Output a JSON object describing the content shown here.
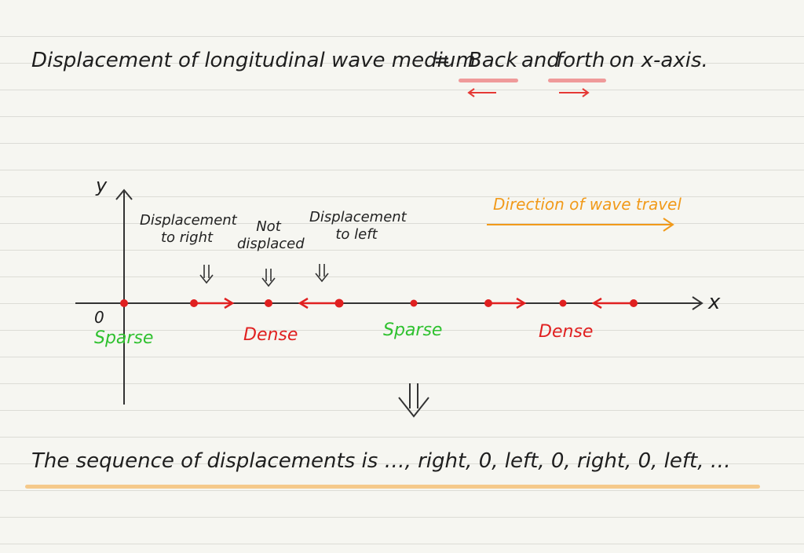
{
  "heading": {
    "left": "Displacement of longitudinal wave medium",
    "equals": "=",
    "back": "Back",
    "and": "and",
    "forth": "forth",
    "rest": "on x-axis."
  },
  "axes": {
    "y_label": "y",
    "x_label": "x",
    "origin_label": "0"
  },
  "annotations": {
    "right_line1": "Displacement",
    "right_line2": "to right",
    "not_line1": "Not",
    "not_line2": "displaced",
    "left_line1": "Displacement",
    "left_line2": "to left",
    "arrow_glyph": "⇓"
  },
  "regions": {
    "sparse_1": "Sparse",
    "dense_1": "Dense",
    "sparse_2": "Sparse",
    "dense_2": "Dense"
  },
  "wave_direction": "Direction of wave travel",
  "down_arrow": "⇓",
  "conclusion": "The sequence of displacements is  …, right, 0, left, 0, right, 0, left, …",
  "colors": {
    "red": "#e02020",
    "green": "#2fc12f",
    "orange": "#f19a1a",
    "pink_underline": "#ef9a9a",
    "yellow_underline": "#f5c98a"
  }
}
